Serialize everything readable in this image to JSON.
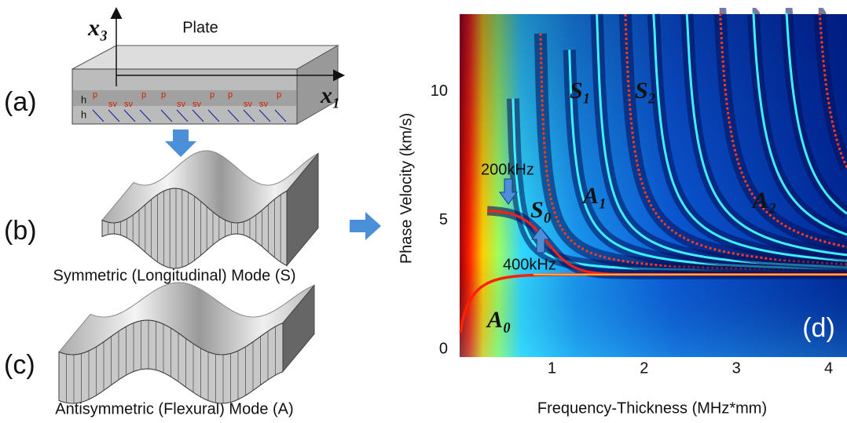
{
  "figure": {
    "panel_a": {
      "label": "(a)",
      "title": "Plate",
      "axis_vertical": "x₃",
      "axis_horizontal": "x₁",
      "thickness_labels": [
        "h",
        "h"
      ],
      "wave_labels": [
        "p",
        "sv",
        "sv",
        "p"
      ]
    },
    "panel_b": {
      "label": "(b)",
      "caption": "Symmetric (Longitudinal) Mode (S)"
    },
    "panel_c": {
      "label": "(c)",
      "caption": "Antisymmetric (Flexural) Mode (A)"
    }
  },
  "chart_data": {
    "type": "dispersion",
    "panel_label": "(d)",
    "x_label": "Frequency-Thickness (MHz*mm)",
    "y_label": "Phase Velocity (km/s)",
    "xlim": [
      0,
      4.2
    ],
    "ylim": [
      0,
      13
    ],
    "xticks": [
      1,
      2,
      3,
      4
    ],
    "yticks": [
      0,
      5,
      10
    ],
    "mode_labels": [
      "S₁",
      "S₂",
      "A₁",
      "A₂",
      "S₀",
      "A₀"
    ],
    "annotations": [
      "200kHz",
      "400kHz"
    ]
  }
}
